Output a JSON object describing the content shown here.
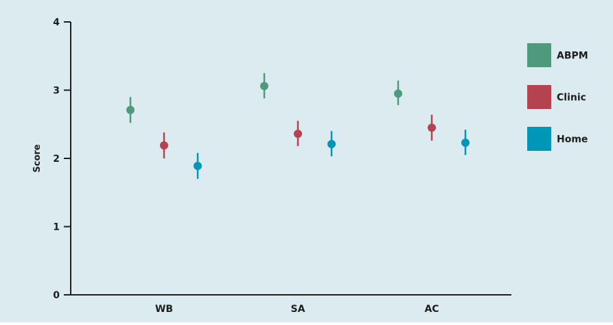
{
  "chart_data": {
    "type": "scatter",
    "title": "",
    "xlabel": "",
    "ylabel": "Score",
    "categories": [
      "WB",
      "SA",
      "AC"
    ],
    "ylim": [
      0,
      4
    ],
    "yticks": [
      0,
      1,
      2,
      3,
      4
    ],
    "grid": false,
    "legend_position": "right",
    "background_color": "#dcebf0",
    "series": [
      {
        "name": "ABPM",
        "color": "#4f9a7c",
        "values": [
          2.71,
          3.06,
          2.95
        ],
        "lower": [
          2.52,
          2.88,
          2.78
        ],
        "upper": [
          2.9,
          3.25,
          3.14
        ]
      },
      {
        "name": "Clinic",
        "color": "#b5424f",
        "values": [
          2.19,
          2.36,
          2.45
        ],
        "lower": [
          2.0,
          2.18,
          2.26
        ],
        "upper": [
          2.38,
          2.55,
          2.64
        ]
      },
      {
        "name": "Home",
        "color": "#0096b7",
        "values": [
          1.89,
          2.21,
          2.23
        ],
        "lower": [
          1.7,
          2.03,
          2.05
        ],
        "upper": [
          2.08,
          2.4,
          2.42
        ]
      }
    ]
  }
}
